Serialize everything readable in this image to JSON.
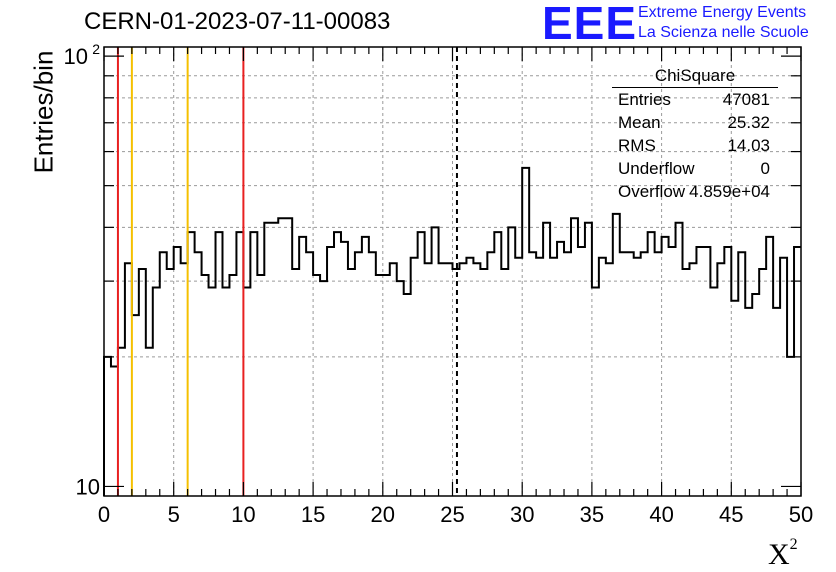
{
  "chart_data": {
    "type": "histogram",
    "title": "CERN-01-2023-07-11-00083",
    "xlabel": "X",
    "xlabel_sup": "2",
    "ylabel": "Entries/bin",
    "xlim": [
      0,
      50
    ],
    "ylim": [
      9.5,
      105
    ],
    "yscale": "log",
    "grid": true,
    "bin_width": 0.5,
    "values": [
      20,
      19,
      21,
      33,
      25,
      32,
      21,
      29,
      35,
      32,
      36,
      33,
      39,
      35,
      31,
      29,
      39,
      29,
      31,
      39,
      29,
      39,
      31,
      41,
      41,
      42,
      42,
      32,
      38,
      35,
      31,
      30,
      36,
      39,
      37,
      32,
      35,
      38,
      35,
      31,
      31,
      33,
      30,
      28,
      34,
      39,
      33,
      40,
      33,
      33,
      32,
      33,
      34,
      33,
      32,
      35,
      39,
      32,
      40,
      34,
      55,
      35,
      34,
      41,
      34,
      37,
      35,
      42,
      36,
      41,
      29,
      34,
      33,
      43,
      35,
      35,
      34,
      35,
      39,
      35,
      38,
      36,
      41,
      32,
      33,
      36,
      36,
      29,
      33,
      36,
      27,
      35,
      26,
      28,
      32,
      38,
      26,
      34,
      20,
      36
    ],
    "x_ticks": [
      "0",
      "5",
      "10",
      "15",
      "20",
      "25",
      "30",
      "35",
      "40",
      "45",
      "50"
    ],
    "y_tick_labels": [
      {
        "value": 10,
        "label": "10"
      },
      {
        "value": 100,
        "label": "10",
        "exp": "2"
      }
    ],
    "vlines": [
      {
        "x": 1,
        "color": "#e82020",
        "style": "solid"
      },
      {
        "x": 2,
        "color": "#f5c000",
        "style": "solid"
      },
      {
        "x": 6,
        "color": "#f5c000",
        "style": "solid"
      },
      {
        "x": 10,
        "color": "#e82020",
        "style": "solid"
      },
      {
        "x": 25.32,
        "color": "#000000",
        "style": "dashed"
      }
    ],
    "legend": "top-right"
  },
  "stats_box": {
    "title": "ChiSquare",
    "rows": [
      {
        "label": "Entries",
        "value": "47081"
      },
      {
        "label": "Mean",
        "value": "25.32"
      },
      {
        "label": "RMS",
        "value": "14.03"
      },
      {
        "label": "Underflow",
        "value": "0"
      },
      {
        "label": "Overflow",
        "value": "4.859e+04"
      }
    ]
  },
  "logo": {
    "mark": "EEE",
    "line1": "Extreme Energy Events",
    "line2": "La Scienza nelle Scuole",
    "color": "#1a1aff"
  }
}
